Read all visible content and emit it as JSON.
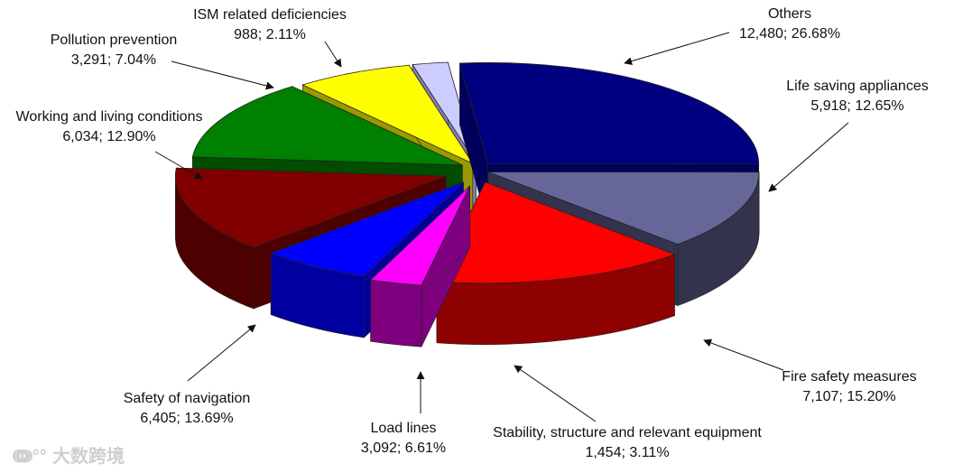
{
  "chart_data": {
    "type": "pie",
    "style": "3d-exploded",
    "slices": [
      {
        "name": "Others",
        "value": 12480,
        "percent": "26.68%",
        "value_label": "12,480",
        "color": "#000080",
        "side": "#00005a"
      },
      {
        "name": "Life saving appliances",
        "value": 5918,
        "percent": "12.65%",
        "value_label": "5,918",
        "color": "#666699",
        "side": "#33334d"
      },
      {
        "name": "Fire safety measures",
        "value": 7107,
        "percent": "15.20%",
        "value_label": "7,107",
        "color": "#ff0000",
        "side": "#8f0000"
      },
      {
        "name": "Stability, structure and relevant equipment",
        "value": 1454,
        "percent": "3.11%",
        "value_label": "1,454",
        "color": "#ff00ff",
        "side": "#7f007f"
      },
      {
        "name": "Load lines",
        "value": 3092,
        "percent": "6.61%",
        "value_label": "3,092",
        "color": "#0000ff",
        "side": "#0000a0"
      },
      {
        "name": "Safety of navigation",
        "value": 6405,
        "percent": "13.69%",
        "value_label": "6,405",
        "color": "#800000",
        "side": "#4d0000"
      },
      {
        "name": "Working and living conditions",
        "value": 6034,
        "percent": "12.90%",
        "value_label": "6,034",
        "color": "#008000",
        "side": "#004d00"
      },
      {
        "name": "Pollution prevention",
        "value": 3291,
        "percent": "7.04%",
        "value_label": "3,291",
        "color": "#ffff00",
        "side": "#9a9a00"
      },
      {
        "name": "ISM related deficiencies",
        "value": 988,
        "percent": "2.11%",
        "value_label": "988",
        "color": "#ccccff",
        "side": "#8080b3"
      }
    ],
    "legend": "none",
    "watermark": "大数跨境"
  }
}
